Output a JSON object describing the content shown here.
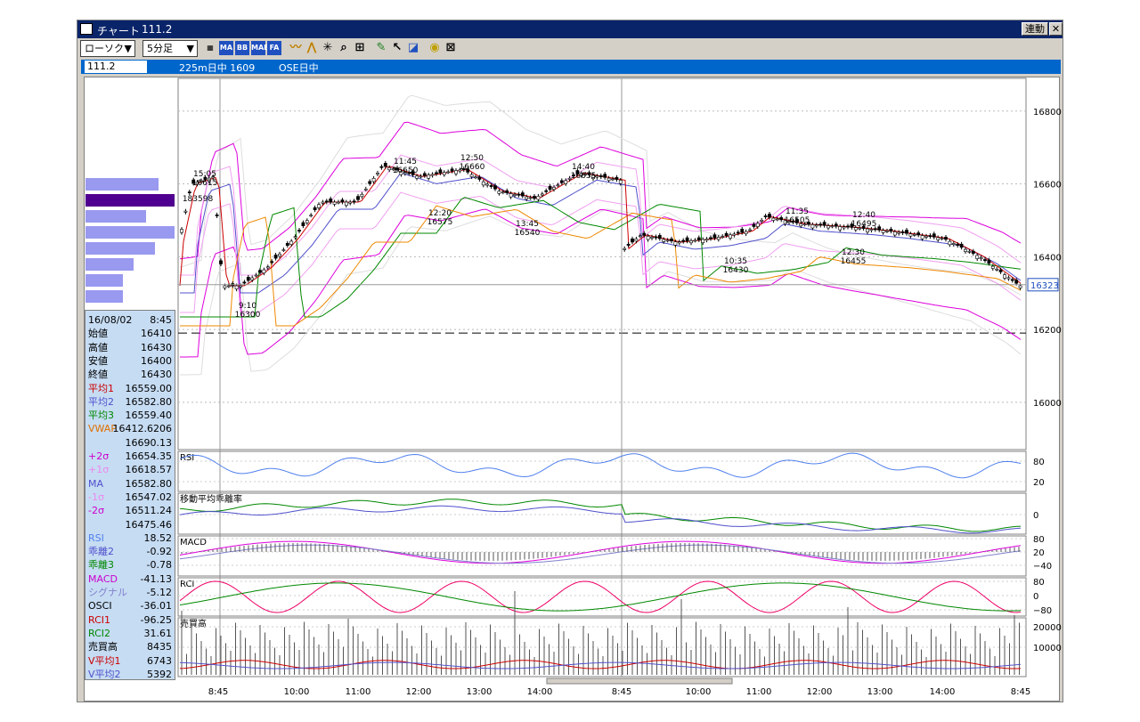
{
  "window": {
    "title": "チャート",
    "symbol": "111.2",
    "renkan_label": "連動",
    "close_label": "✕"
  },
  "toolbar": {
    "chart_type": "ローソク",
    "interval": "5分足",
    "icons": [
      "chart-settings-icon",
      "ma-icon",
      "bb-icon",
      "mae-icon",
      "fa-icon",
      "line-icon",
      "envelope-icon",
      "cross-icon",
      "zoom-icon",
      "scale-icon",
      "pen-icon",
      "pointer-icon",
      "eraser-icon",
      "search-icon",
      "clear-icon"
    ],
    "icon_labels": {
      "ma": "MA",
      "bb": "BB",
      "mae": "MAE",
      "fa": "FA"
    }
  },
  "infobar": {
    "code": "111.2",
    "instrument": "225m日中 1609",
    "market": "OSE日中"
  },
  "datapanel": {
    "rows": [
      {
        "label": "16/08/02",
        "value": "8:45",
        "color": "#000000"
      },
      {
        "label": "始値",
        "value": "16410",
        "color": "#000000"
      },
      {
        "label": "高値",
        "value": "16430",
        "color": "#000000"
      },
      {
        "label": "安値",
        "value": "16400",
        "color": "#000000"
      },
      {
        "label": "終値",
        "value": "16430",
        "color": "#000000"
      },
      {
        "label": "平均1",
        "value": "16559.00",
        "color": "#cc0000"
      },
      {
        "label": "平均2",
        "value": "16582.80",
        "color": "#5050cc"
      },
      {
        "label": "平均3",
        "value": "16559.40",
        "color": "#008800"
      },
      {
        "label": "VWAP",
        "value": "16412.6206",
        "color": "#e07000"
      },
      {
        "label": "",
        "value": "16690.13",
        "color": "#000000"
      },
      {
        "label": "+2σ",
        "value": "16654.35",
        "color": "#cc00cc"
      },
      {
        "label": "+1σ",
        "value": "16618.57",
        "color": "#ee88ee"
      },
      {
        "label": "MA",
        "value": "16582.80",
        "color": "#5050cc"
      },
      {
        "label": "-1σ",
        "value": "16547.02",
        "color": "#ee88ee"
      },
      {
        "label": "-2σ",
        "value": "16511.24",
        "color": "#cc00cc"
      },
      {
        "label": "",
        "value": "16475.46",
        "color": "#000000"
      },
      {
        "label": "RSI",
        "value": "18.52",
        "color": "#5080ee"
      },
      {
        "label": "乖離2",
        "value": "-0.92",
        "color": "#5050cc"
      },
      {
        "label": "乖離3",
        "value": "-0.78",
        "color": "#008800"
      },
      {
        "label": "MACD",
        "value": "-41.13",
        "color": "#cc00cc"
      },
      {
        "label": "シグナル",
        "value": "-5.12",
        "color": "#8080cc"
      },
      {
        "label": "OSCI",
        "value": "-36.01",
        "color": "#000000"
      },
      {
        "label": "RCI1",
        "value": "-96.25",
        "color": "#cc0000"
      },
      {
        "label": "RCI2",
        "value": "31.61",
        "color": "#008800"
      },
      {
        "label": "売買高",
        "value": "8435",
        "color": "#000000"
      },
      {
        "label": "V平均1",
        "value": "6743",
        "color": "#cc0000"
      },
      {
        "label": "V平均2",
        "value": "5392",
        "color": "#5050cc"
      }
    ]
  },
  "chart_data": {
    "type": "candlestick",
    "price_axis": {
      "ticks": [
        16800,
        16600,
        16400,
        16200,
        16000
      ],
      "range": [
        15870,
        16890
      ]
    },
    "current_price": "16323",
    "dashed_level": 16190,
    "time_labels": [
      "8:45",
      "10:00",
      "11:00",
      "12:00",
      "13:00",
      "14:00",
      "8:45",
      "10:00",
      "11:00",
      "12:00",
      "13:00",
      "14:00",
      "8:45"
    ],
    "annotations": [
      {
        "time": "15:05",
        "price": "16615"
      },
      {
        "time": "9:10",
        "price": "16300"
      },
      {
        "time": "11:45",
        "price": "16650"
      },
      {
        "time": "12:50",
        "price": "16660"
      },
      {
        "time": "12:20",
        "price": "16575"
      },
      {
        "time": "13:45",
        "price": "16540"
      },
      {
        "time": "14:40",
        "price": "16635"
      },
      {
        "time": "10:35",
        "price": "16430"
      },
      {
        "time": "11:35",
        "price": "16505"
      },
      {
        "time": "12:40",
        "price": "16495"
      },
      {
        "time": "12:30",
        "price": "16455"
      }
    ],
    "side_label": "183598",
    "volume_profile": [
      0.82,
      1.0,
      0.68,
      1.0,
      0.78,
      0.54,
      0.42,
      0.42
    ],
    "panels": [
      {
        "name": "RSI",
        "ticks": [
          "80",
          "20"
        ]
      },
      {
        "name": "移動平均乖離率",
        "ticks": [
          "0"
        ]
      },
      {
        "name": "MACD",
        "ticks": [
          "80",
          "20",
          "−40"
        ]
      },
      {
        "name": "RCI",
        "ticks": [
          "80",
          "0",
          "−80"
        ]
      },
      {
        "name": "売買高",
        "ticks": [
          "20000",
          "10000"
        ]
      }
    ]
  },
  "colors": {
    "titlebar": "#0a246a",
    "infobar": "#0066cc",
    "panel": "#c6dcf3"
  }
}
